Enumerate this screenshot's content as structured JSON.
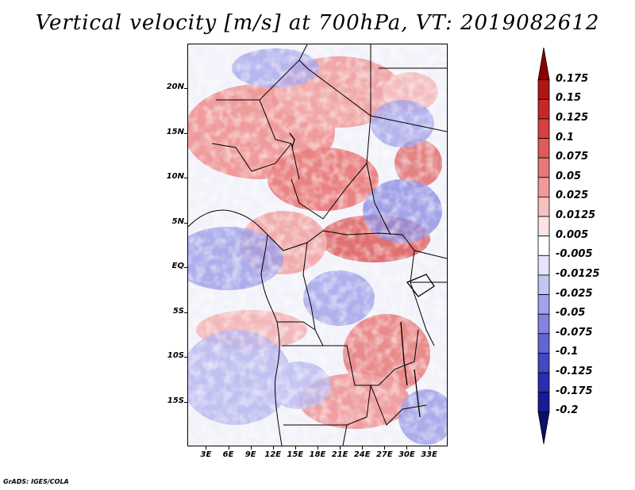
{
  "title": "Vertical velocity [m/s] at 700hPa, VT: 2019082612",
  "credit": "GrADS: IGES/COLA",
  "map": {
    "lat_labels": [
      "20N",
      "15N",
      "10N",
      "5N",
      "EQ",
      "5S",
      "10S",
      "15S"
    ],
    "lat_values": [
      20,
      15,
      10,
      5,
      0,
      -5,
      -10,
      -15
    ],
    "lon_labels": [
      "3E",
      "6E",
      "9E",
      "12E",
      "15E",
      "18E",
      "21E",
      "24E",
      "27E",
      "30E",
      "33E"
    ],
    "lon_values": [
      3,
      6,
      9,
      12,
      15,
      18,
      21,
      24,
      27,
      30,
      33
    ],
    "lat_range": [
      -20,
      25
    ],
    "lon_range": [
      0.5,
      35.5
    ]
  },
  "colorbar": {
    "levels": [
      "0.175",
      "0.15",
      "0.125",
      "0.1",
      "0.075",
      "0.05",
      "0.025",
      "0.0125",
      "0.005",
      "-0.005",
      "-0.0125",
      "-0.025",
      "-0.05",
      "-0.075",
      "-0.1",
      "-0.125",
      "-0.175",
      "-0.2"
    ],
    "colors": [
      "#8b0000",
      "#b01515",
      "#c62828",
      "#d84040",
      "#e05a5a",
      "#e87878",
      "#f09a9a",
      "#f7c0c0",
      "#fde4e4",
      "#ffffff",
      "#e4e4fb",
      "#c4c4f2",
      "#a2a2ea",
      "#8282e0",
      "#6464d6",
      "#4646c6",
      "#2c2cb0",
      "#1a1a95",
      "#0d0d70"
    ]
  }
}
